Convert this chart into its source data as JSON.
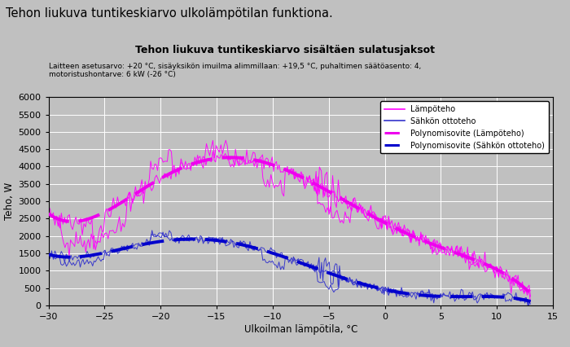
{
  "title_main": "Tehon liukuva tuntikeskiarvo ulkolämpötilan funktiona.",
  "title_sub": "Tehon liukuva tuntikeskiarvo sisältäen sulatusjaksot",
  "subtitle_info": "Laitteen asetusarvo: +20 °C, sisäyksikön imuilma alimmillaan: +19,5 °C, puhaltimen säätöasento: 4,\nmotoristushontarve: 6 kW (-26 °C)",
  "xlabel": "Ulkoilman lämpötila, °C",
  "ylabel": "Teho, W",
  "xlim": [
    -30,
    15
  ],
  "ylim": [
    0,
    6000
  ],
  "xticks": [
    -30,
    -25,
    -20,
    -15,
    -10,
    -5,
    0,
    5,
    10,
    15
  ],
  "yticks": [
    0,
    500,
    1000,
    1500,
    2000,
    2500,
    3000,
    3500,
    4000,
    4500,
    5000,
    5500,
    6000
  ],
  "background_color": "#c0c0c0",
  "lampoteho_color": "#ff00ff",
  "sahko_color": "#3333cc",
  "poly_lamp_color": "#ee00ee",
  "poly_sahko_color": "#0000cc",
  "legend_labels": [
    "Lämpöteho",
    "Sähkön ottoteho",
    "Polynomisovite (Lämpöteho)",
    "Polynomisovite (Sähkön ottoteho)"
  ]
}
